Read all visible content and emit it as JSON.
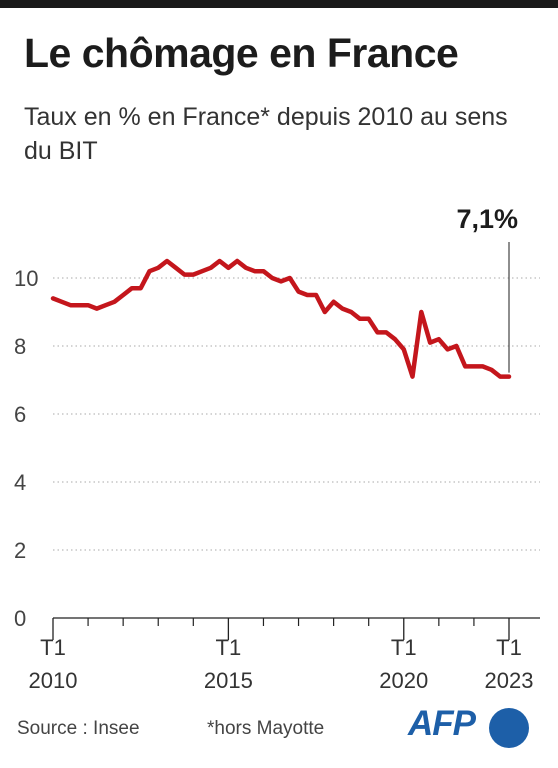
{
  "title": "Le chômage en France",
  "subtitle": "Taux en % en France* depuis 2010 au sens du BIT",
  "footer": {
    "source": "Source : Insee",
    "note": "*hors Mayotte",
    "logo": "AFP"
  },
  "colors": {
    "line": "#c4161c",
    "grid": "#bbbbbb",
    "brand": "#1d5fa8"
  },
  "chart_data": {
    "type": "line",
    "title": "Le chômage en France",
    "subtitle": "Taux en % en France* depuis 2010 au sens du BIT",
    "xlabel": "",
    "ylabel": "",
    "ylim": [
      0,
      11
    ],
    "yticks": [
      0,
      2,
      4,
      6,
      8,
      10
    ],
    "ytick_labels": [
      "0",
      "2",
      "4",
      "6",
      "8",
      "10"
    ],
    "grid": true,
    "grid_style": "dotted horizontal",
    "x_ticks": [
      {
        "x": "2010-T1",
        "label": "T1",
        "year": "2010"
      },
      {
        "x": "2015-T1",
        "label": "T1",
        "year": "2015"
      },
      {
        "x": "2020-T1",
        "label": "T1",
        "year": "2020"
      },
      {
        "x": "2023-T1",
        "label": "T1",
        "year": "2023"
      }
    ],
    "annotation": {
      "x": "2023-T1",
      "text": "7,1%"
    },
    "series": [
      {
        "color": "#c4161c",
        "x": [
          "2010-T1",
          "2010-T2",
          "2010-T3",
          "2010-T4",
          "2011-T1",
          "2011-T2",
          "2011-T3",
          "2011-T4",
          "2012-T1",
          "2012-T2",
          "2012-T3",
          "2012-T4",
          "2013-T1",
          "2013-T2",
          "2013-T3",
          "2013-T4",
          "2014-T1",
          "2014-T2",
          "2014-T3",
          "2014-T4",
          "2015-T1",
          "2015-T2",
          "2015-T3",
          "2015-T4",
          "2016-T1",
          "2016-T2",
          "2016-T3",
          "2016-T4",
          "2017-T1",
          "2017-T2",
          "2017-T3",
          "2017-T4",
          "2018-T1",
          "2018-T2",
          "2018-T3",
          "2018-T4",
          "2019-T1",
          "2019-T2",
          "2019-T3",
          "2019-T4",
          "2020-T1",
          "2020-T2",
          "2020-T3",
          "2020-T4",
          "2021-T1",
          "2021-T2",
          "2021-T3",
          "2021-T4",
          "2022-T1",
          "2022-T2",
          "2022-T3",
          "2022-T4",
          "2023-T1"
        ],
        "values": [
          9.4,
          9.3,
          9.2,
          9.2,
          9.2,
          9.1,
          9.2,
          9.3,
          9.5,
          9.7,
          9.7,
          10.2,
          10.3,
          10.5,
          10.3,
          10.1,
          10.1,
          10.2,
          10.3,
          10.5,
          10.3,
          10.5,
          10.3,
          10.2,
          10.2,
          10.0,
          9.9,
          10.0,
          9.6,
          9.5,
          9.5,
          9.0,
          9.3,
          9.1,
          9.0,
          8.8,
          8.8,
          8.4,
          8.4,
          8.2,
          7.9,
          7.1,
          9.0,
          8.1,
          8.2,
          7.9,
          8.0,
          7.4,
          7.4,
          7.4,
          7.3,
          7.1,
          7.1
        ]
      }
    ]
  }
}
